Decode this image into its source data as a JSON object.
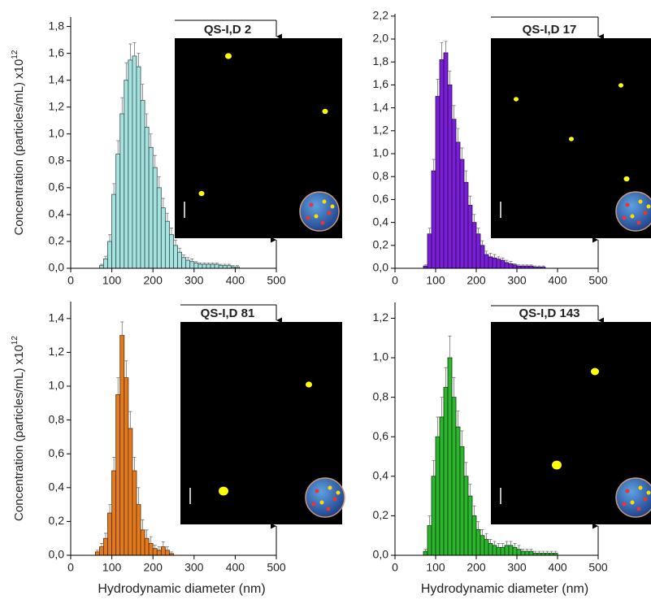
{
  "chart_data": [
    {
      "type": "histogram",
      "title": "QS-I,D 2",
      "y_label": "Concentration (particles/mL) x10",
      "y_label_sup": "12",
      "bins": [
        70,
        80,
        90,
        100,
        110,
        120,
        130,
        140,
        150,
        160,
        170,
        180,
        190,
        200,
        210,
        220,
        230,
        240,
        250,
        260,
        270,
        280,
        290,
        300,
        310,
        320,
        330,
        340,
        350,
        360,
        370,
        380,
        390,
        400,
        410
      ],
      "values": [
        0.02,
        0.07,
        0.2,
        0.55,
        0.85,
        1.15,
        1.4,
        1.55,
        1.58,
        1.5,
        1.25,
        1.05,
        0.9,
        0.75,
        0.6,
        0.45,
        0.35,
        0.25,
        0.17,
        0.12,
        0.08,
        0.06,
        0.05,
        0.04,
        0.03,
        0.03,
        0.03,
        0.03,
        0.03,
        0.02,
        0.02,
        0.02,
        0.01,
        0.01
      ],
      "errors": [
        0.01,
        0.02,
        0.05,
        0.08,
        0.1,
        0.12,
        0.13,
        0.12,
        0.1,
        0.1,
        0.12,
        0.1,
        0.1,
        0.09,
        0.08,
        0.07,
        0.06,
        0.05,
        0.04,
        0.03,
        0.02,
        0.02,
        0.02,
        0.01,
        0.01,
        0.01,
        0.01,
        0.01,
        0.01,
        0.01,
        0.01,
        0.01,
        0.01,
        0.01
      ],
      "color": "#a6e3e0",
      "edgecolor": "#2f4f4f",
      "xlim": [
        0,
        500
      ],
      "xticks": [
        0,
        100,
        200,
        300,
        400,
        500
      ],
      "ylim": [
        0,
        1.87
      ],
      "yticks": [
        {
          "value": 0,
          "label": "0,0"
        },
        {
          "value": 0.2,
          "label": "0,2"
        },
        {
          "value": 0.4,
          "label": "0,4"
        },
        {
          "value": 0.6,
          "label": "0,6"
        },
        {
          "value": 0.8,
          "label": "0,8"
        },
        {
          "value": 1.0,
          "label": "1,0"
        },
        {
          "value": 1.2,
          "label": "1,2"
        },
        {
          "value": 1.4,
          "label": "1,4"
        },
        {
          "value": 1.6,
          "label": "1,6"
        },
        {
          "value": 1.8,
          "label": "1,8"
        }
      ]
    },
    {
      "type": "histogram",
      "title": "QS-I,D 17",
      "bins": [
        70,
        80,
        90,
        100,
        110,
        120,
        130,
        140,
        150,
        160,
        170,
        180,
        190,
        200,
        210,
        220,
        230,
        240,
        250,
        260,
        270,
        280,
        290,
        300,
        310,
        320,
        330,
        340,
        350,
        360,
        370
      ],
      "values": [
        0.02,
        0.3,
        0.85,
        1.5,
        1.82,
        1.88,
        1.6,
        1.3,
        1.1,
        0.95,
        0.75,
        0.55,
        0.4,
        0.3,
        0.2,
        0.12,
        0.1,
        0.09,
        0.08,
        0.07,
        0.05,
        0.04,
        0.03,
        0.02,
        0.02,
        0.02,
        0.02,
        0.01,
        0.01,
        0.01
      ],
      "errors": [
        0.01,
        0.05,
        0.1,
        0.15,
        0.15,
        0.1,
        0.12,
        0.12,
        0.12,
        0.1,
        0.1,
        0.08,
        0.07,
        0.05,
        0.04,
        0.03,
        0.03,
        0.03,
        0.02,
        0.02,
        0.02,
        0.02,
        0.01,
        0.01,
        0.01,
        0.01,
        0.01,
        0.01,
        0.01,
        0.01
      ],
      "color": "#7b1fd6",
      "edgecolor": "#2a0a55",
      "xlim": [
        0,
        500
      ],
      "xticks": [
        0,
        100,
        200,
        300,
        400,
        500
      ],
      "ylim": [
        0,
        2.22
      ],
      "yticks": [
        {
          "value": 0,
          "label": "0,0"
        },
        {
          "value": 0.2,
          "label": "0,2"
        },
        {
          "value": 0.4,
          "label": "0,4"
        },
        {
          "value": 0.6,
          "label": "0,6"
        },
        {
          "value": 0.8,
          "label": "0,8"
        },
        {
          "value": 1.0,
          "label": "1,0"
        },
        {
          "value": 1.2,
          "label": "1,2"
        },
        {
          "value": 1.4,
          "label": "1,4"
        },
        {
          "value": 1.6,
          "label": "1,6"
        },
        {
          "value": 1.8,
          "label": "1,8"
        },
        {
          "value": 2.0,
          "label": "2,0"
        },
        {
          "value": 2.2,
          "label": "2,2"
        }
      ]
    },
    {
      "type": "histogram",
      "title": "QS-I,D 81",
      "y_label": "Concentration (particles/mL) x10",
      "y_label_sup": "12",
      "x_label": "Hydrodynamic diameter (nm)",
      "bins": [
        60,
        70,
        80,
        90,
        100,
        110,
        120,
        130,
        140,
        150,
        160,
        170,
        180,
        190,
        200,
        210,
        220,
        230,
        240,
        250
      ],
      "values": [
        0.02,
        0.05,
        0.1,
        0.25,
        0.5,
        0.95,
        1.3,
        1.05,
        0.75,
        0.5,
        0.3,
        0.15,
        0.1,
        0.07,
        0.04,
        0.03,
        0.05,
        0.03,
        0.01
      ],
      "errors": [
        0.01,
        0.02,
        0.03,
        0.05,
        0.08,
        0.1,
        0.08,
        0.1,
        0.1,
        0.08,
        0.1,
        0.06,
        0.05,
        0.04,
        0.02,
        0.02,
        0.03,
        0.02,
        0.01
      ],
      "color": "#e27b20",
      "edgecolor": "#5a2a00",
      "xlim": [
        0,
        500
      ],
      "xticks": [
        0,
        100,
        200,
        300,
        400,
        500
      ],
      "ylim": [
        0,
        1.5
      ],
      "yticks": [
        {
          "value": 0,
          "label": "0,0"
        },
        {
          "value": 0.2,
          "label": "0,2"
        },
        {
          "value": 0.4,
          "label": "0,4"
        },
        {
          "value": 0.6,
          "label": "0,6"
        },
        {
          "value": 0.8,
          "label": "0,8"
        },
        {
          "value": 1.0,
          "label": "1,0"
        },
        {
          "value": 1.2,
          "label": "1,2"
        },
        {
          "value": 1.4,
          "label": "1,4"
        }
      ]
    },
    {
      "type": "histogram",
      "title": "QS-I,D 143",
      "x_label": "Hydrodynamic diameter (nm)",
      "bins": [
        70,
        80,
        90,
        100,
        110,
        120,
        130,
        140,
        150,
        160,
        170,
        180,
        190,
        200,
        210,
        220,
        230,
        240,
        250,
        260,
        270,
        280,
        290,
        300,
        310,
        320,
        330,
        340,
        350,
        360,
        370,
        380,
        390,
        400
      ],
      "values": [
        0.02,
        0.15,
        0.4,
        0.6,
        0.7,
        0.85,
        1.0,
        0.8,
        0.65,
        0.55,
        0.4,
        0.3,
        0.2,
        0.13,
        0.1,
        0.08,
        0.06,
        0.05,
        0.04,
        0.04,
        0.05,
        0.05,
        0.04,
        0.03,
        0.02,
        0.02,
        0.02,
        0.01,
        0.01,
        0.01,
        0.01,
        0.01,
        0.01
      ],
      "errors": [
        0.01,
        0.05,
        0.08,
        0.1,
        0.1,
        0.1,
        0.11,
        0.1,
        0.08,
        0.08,
        0.07,
        0.06,
        0.05,
        0.04,
        0.03,
        0.03,
        0.02,
        0.02,
        0.02,
        0.02,
        0.02,
        0.02,
        0.02,
        0.02,
        0.01,
        0.01,
        0.01,
        0.01,
        0.01,
        0.01,
        0.01,
        0.01,
        0.01
      ],
      "color": "#2eb52e",
      "edgecolor": "#0a3a0a",
      "xlim": [
        0,
        500
      ],
      "xticks": [
        0,
        100,
        200,
        300,
        400,
        500
      ],
      "ylim": [
        0,
        1.28
      ],
      "yticks": [
        {
          "value": 0,
          "label": "0,0"
        },
        {
          "value": 0.2,
          "label": "0,2"
        },
        {
          "value": 0.4,
          "label": "0,4"
        },
        {
          "value": 0.6,
          "label": "0,6"
        },
        {
          "value": 0.8,
          "label": "0,8"
        },
        {
          "value": 1.0,
          "label": "1,0"
        },
        {
          "value": 1.2,
          "label": "1,2"
        }
      ]
    }
  ]
}
